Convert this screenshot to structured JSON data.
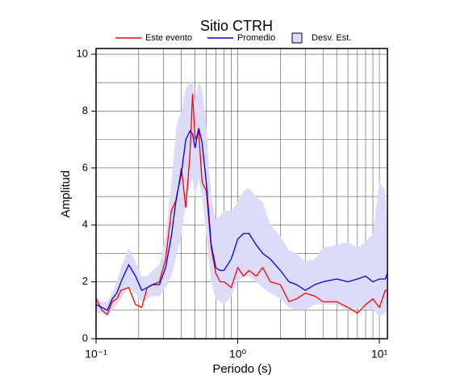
{
  "chart_data": {
    "type": "line",
    "title": "Sitio CTRH",
    "xlabel": "Periodo (s)",
    "ylabel": "Amplitud",
    "log_x": true,
    "grid": true,
    "xlim": [
      0.1,
      11.4
    ],
    "ylim": [
      0,
      10.2
    ],
    "xticks": [
      {
        "value": 0.1,
        "label": "10⁻¹"
      },
      {
        "value": 1,
        "label": "10⁰"
      },
      {
        "value": 10,
        "label": "10¹"
      }
    ],
    "minor_xticks": [
      0.2,
      0.3,
      0.4,
      0.5,
      0.6,
      0.7,
      0.8,
      0.9,
      2,
      3,
      4,
      5,
      6,
      7,
      8,
      9
    ],
    "yticks": [
      0,
      2,
      4,
      6,
      8,
      10
    ],
    "minor_yticks": [
      1,
      3,
      5,
      7,
      9
    ],
    "x": [
      0.1,
      0.11,
      0.12,
      0.13,
      0.14,
      0.15,
      0.17,
      0.19,
      0.21,
      0.23,
      0.25,
      0.28,
      0.31,
      0.34,
      0.37,
      0.4,
      0.43,
      0.46,
      0.48,
      0.5,
      0.53,
      0.56,
      0.6,
      0.65,
      0.7,
      0.75,
      0.8,
      0.9,
      1.0,
      1.1,
      1.2,
      1.35,
      1.5,
      1.7,
      2.0,
      2.3,
      2.6,
      3.0,
      3.5,
      4,
      5,
      6,
      7,
      8,
      9,
      10,
      11,
      11.4
    ],
    "band": {
      "name": "Desv. Est.",
      "color": "#dcdcfa",
      "upper": [
        1.5,
        1.3,
        1.3,
        1.6,
        2.0,
        2.5,
        3.2,
        2.7,
        2.2,
        2.2,
        2.4,
        2.6,
        3.6,
        5.5,
        7.5,
        8.0,
        8.8,
        9.0,
        9.1,
        8.4,
        9.0,
        8.8,
        7.5,
        5.0,
        4.2,
        4.3,
        4.5,
        4.5,
        4.8,
        5.2,
        5.3,
        5.0,
        4.8,
        4.0,
        3.6,
        3.1,
        3.0,
        2.7,
        2.8,
        3.2,
        3.3,
        3.4,
        3.2,
        3.4,
        3.7,
        5.5,
        5.2,
        3.5
      ],
      "lower": [
        0.9,
        0.9,
        0.8,
        1.0,
        1.2,
        1.4,
        1.8,
        1.6,
        1.3,
        1.4,
        1.5,
        1.5,
        1.8,
        2.2,
        2.9,
        3.6,
        4.8,
        5.5,
        5.6,
        5.0,
        5.6,
        5.0,
        3.6,
        2.0,
        1.4,
        1.3,
        1.2,
        1.5,
        2.0,
        2.2,
        2.2,
        2.0,
        1.8,
        1.6,
        1.4,
        1.1,
        1.0,
        1.0,
        1.2,
        1.2,
        1.2,
        1.0,
        1.1,
        1.1,
        1.0,
        0.8,
        0.9,
        1.3
      ]
    },
    "series": [
      {
        "name": "Este evento",
        "color": "#ff0000",
        "values": [
          1.4,
          1.0,
          0.85,
          1.3,
          1.4,
          1.7,
          1.8,
          1.2,
          1.1,
          1.8,
          1.9,
          2.0,
          2.8,
          4.5,
          4.9,
          6.0,
          4.6,
          6.5,
          8.6,
          7.0,
          7.3,
          5.5,
          5.2,
          3.2,
          2.3,
          2.0,
          2.0,
          1.8,
          2.5,
          2.2,
          2.4,
          2.2,
          2.5,
          2.0,
          1.9,
          1.3,
          1.4,
          1.6,
          1.5,
          1.3,
          1.3,
          1.1,
          0.9,
          1.2,
          1.4,
          1.1,
          1.7,
          1.7
        ]
      },
      {
        "name": "Promedio",
        "color": "#0000dd",
        "values": [
          1.2,
          1.1,
          1.0,
          1.4,
          1.6,
          2.0,
          2.6,
          2.2,
          1.7,
          1.8,
          1.9,
          1.9,
          2.5,
          3.6,
          5.0,
          5.8,
          7.0,
          7.3,
          7.2,
          6.7,
          7.4,
          6.9,
          5.5,
          3.3,
          2.5,
          2.4,
          2.4,
          2.8,
          3.5,
          3.7,
          3.7,
          3.3,
          3.0,
          2.8,
          2.4,
          2.0,
          1.9,
          1.7,
          1.9,
          2.0,
          2.1,
          2.0,
          2.1,
          2.2,
          2.0,
          2.1,
          2.1,
          2.3
        ]
      }
    ]
  }
}
